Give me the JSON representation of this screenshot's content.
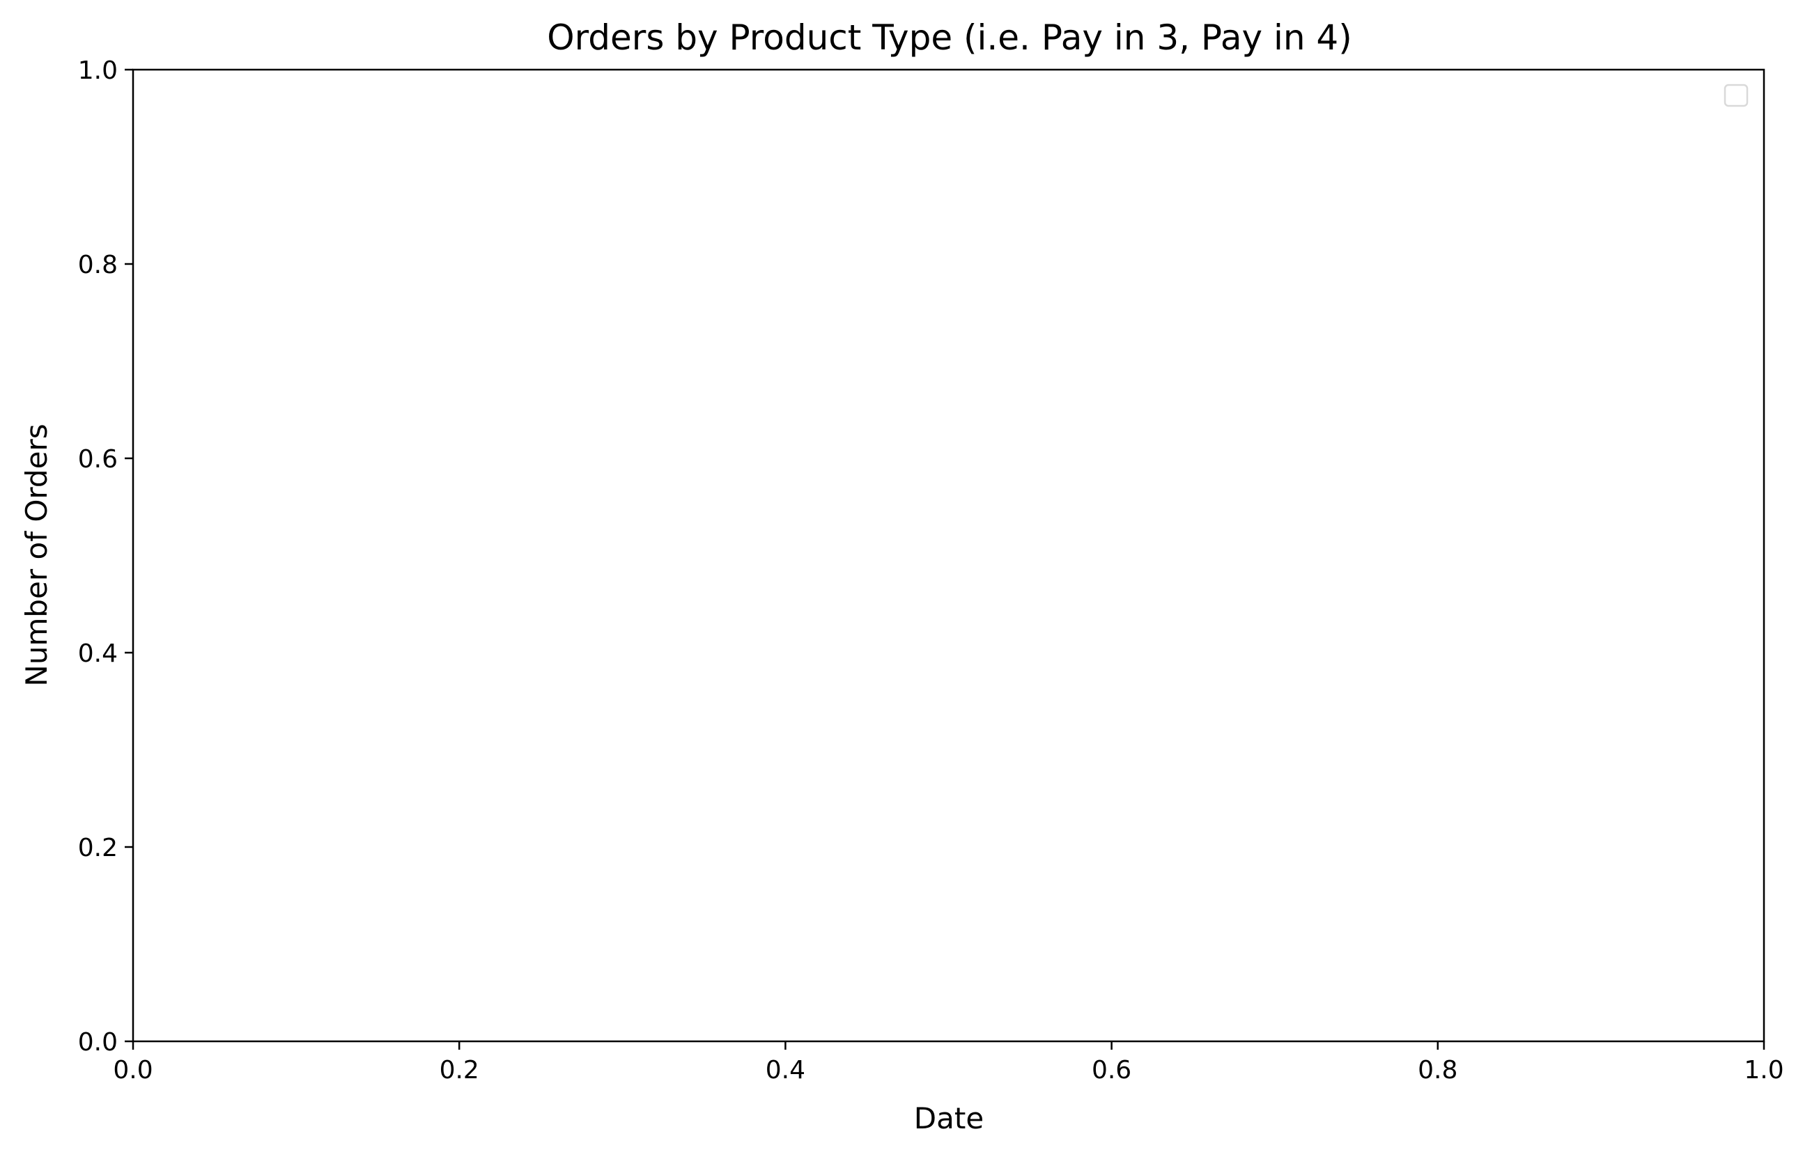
{
  "chart_data": {
    "type": "line",
    "title": "Orders by Product Type (i.e. Pay in 3, Pay in 4)",
    "xlabel": "Date",
    "ylabel": "Number of Orders",
    "xlim": [
      0.0,
      1.0
    ],
    "ylim": [
      0.0,
      1.0
    ],
    "x_ticks": [
      "0.0",
      "0.2",
      "0.4",
      "0.6",
      "0.8",
      "1.0"
    ],
    "y_ticks": [
      "0.0",
      "0.2",
      "0.4",
      "0.6",
      "0.8",
      "1.0"
    ],
    "series": [],
    "grid": false,
    "legend": {
      "position": "top-right",
      "entries": []
    }
  },
  "colors": {
    "axis": "#000000",
    "background": "#ffffff",
    "legend_border": "#d9d9d9"
  }
}
